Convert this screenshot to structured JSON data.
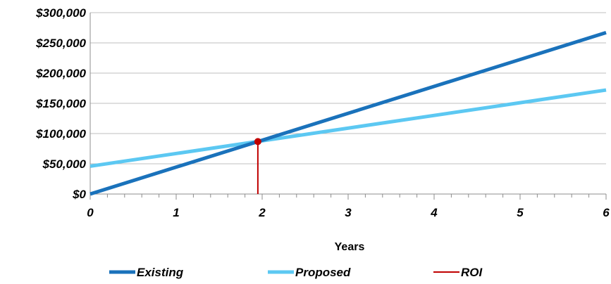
{
  "chart_data": {
    "type": "line",
    "title": "",
    "xlabel": "Years",
    "ylabel": "",
    "xlim": [
      0,
      6
    ],
    "ylim": [
      0,
      300000
    ],
    "x_ticks": [
      0,
      1,
      2,
      3,
      4,
      5,
      6
    ],
    "x_tick_labels": [
      "0",
      "1",
      "2",
      "3",
      "4",
      "5",
      "6"
    ],
    "y_ticks": [
      0,
      50000,
      100000,
      150000,
      200000,
      250000,
      300000
    ],
    "y_tick_labels": [
      "$0",
      "$50,000",
      "$100,000",
      "$150,000",
      "$200,000",
      "$250,000",
      "$300,000"
    ],
    "grid": true,
    "legend_position": "bottom",
    "series": [
      {
        "name": "Existing",
        "color": "#1a72bb",
        "x": [
          0,
          6
        ],
        "y": [
          0,
          267000
        ]
      },
      {
        "name": "Proposed",
        "color": "#5cc8f2",
        "x": [
          0,
          6
        ],
        "y": [
          46000,
          172000
        ]
      },
      {
        "name": "ROI",
        "color": "#c00000",
        "x": [
          1.95,
          1.95
        ],
        "y": [
          0,
          86800
        ]
      }
    ],
    "roi_point": {
      "x": 1.95,
      "y": 86800,
      "color": "#c00000"
    }
  }
}
